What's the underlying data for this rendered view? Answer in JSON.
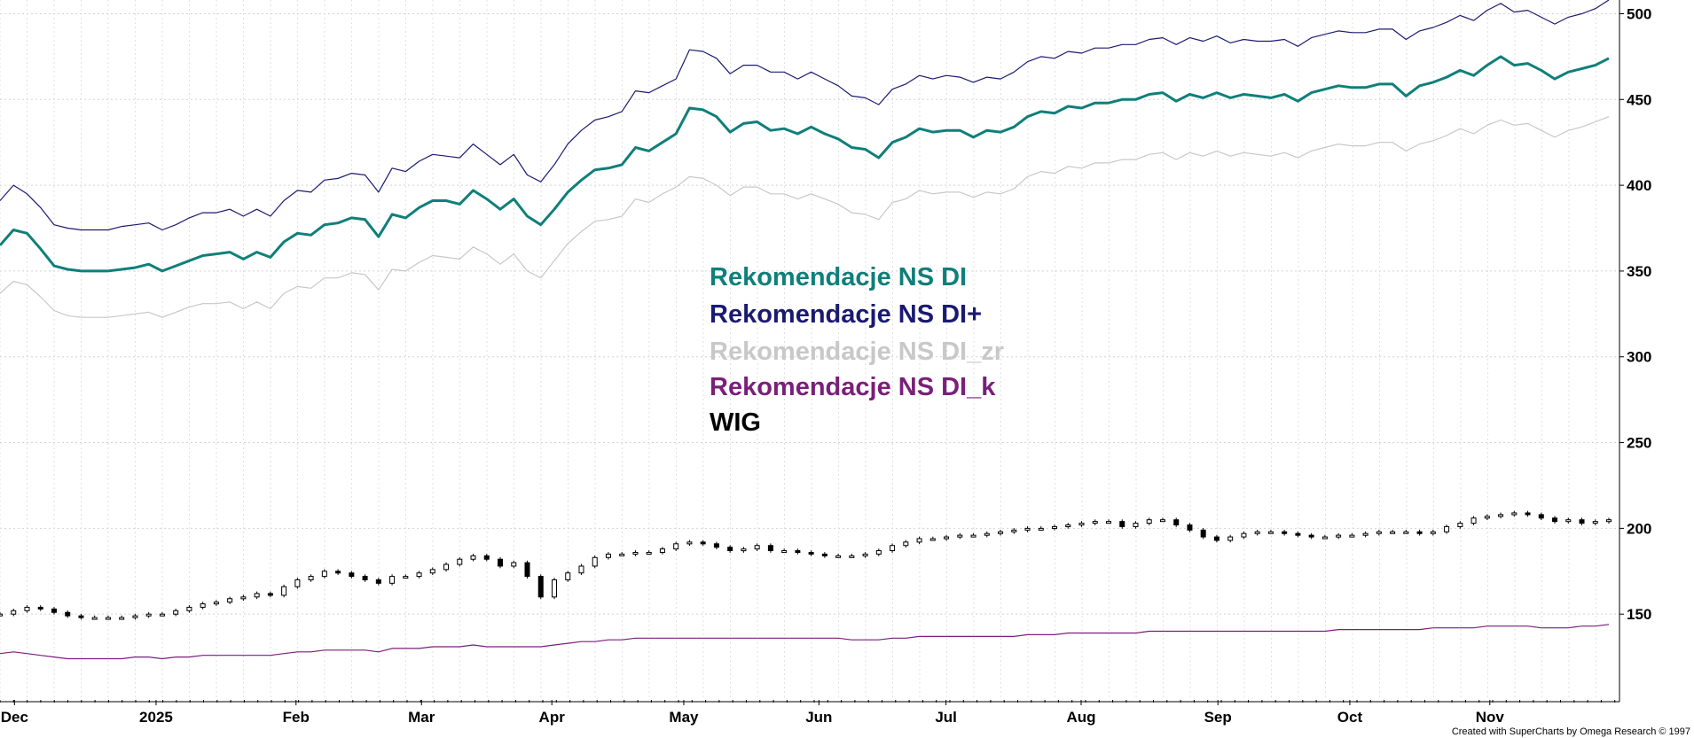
{
  "chart_data": {
    "type": "line",
    "y_axis": {
      "ticks": [
        150,
        200,
        250,
        300,
        350,
        400,
        450,
        500
      ],
      "range": [
        100,
        508
      ],
      "position": "right"
    },
    "x_axis": {
      "ticks": [
        "Dec",
        "2025",
        "Feb",
        "Mar",
        "Apr",
        "May",
        "Jun",
        "Jul",
        "Aug",
        "Sep",
        "Oct",
        "Nov"
      ]
    },
    "grid": true,
    "legend_placement": "center",
    "series": [
      {
        "name": "Rekomendacje NS DI",
        "color": "#0f7f7a",
        "style": "bold",
        "values": [
          365,
          374,
          372,
          363,
          353,
          351,
          350,
          350,
          350,
          351,
          352,
          354,
          350,
          353,
          356,
          359,
          360,
          361,
          357,
          361,
          358,
          367,
          372,
          371,
          377,
          378,
          381,
          380,
          370,
          383,
          381,
          387,
          391,
          391,
          389,
          397,
          392,
          386,
          392,
          382,
          377,
          386,
          396,
          403,
          409,
          410,
          412,
          422,
          420,
          425,
          430,
          445,
          444,
          440,
          431,
          436,
          437,
          432,
          433,
          430,
          434,
          430,
          427,
          422,
          421,
          416,
          425,
          428,
          433,
          431,
          432,
          432,
          428,
          432,
          431,
          434,
          440,
          443,
          442,
          446,
          445,
          448,
          448,
          450,
          450,
          453,
          454,
          449,
          453,
          451,
          454,
          451,
          453,
          452,
          451,
          453,
          449,
          454,
          456,
          458,
          457,
          457,
          459,
          459,
          452,
          458,
          460,
          463,
          467,
          464,
          470,
          475,
          470,
          471,
          467,
          462,
          466,
          468,
          470,
          474
        ]
      },
      {
        "name": "Rekomendacje NS DI+",
        "color": "#1a1a72",
        "style": "thin",
        "values": [
          391,
          400,
          395,
          387,
          377,
          375,
          374,
          374,
          374,
          376,
          377,
          378,
          374,
          377,
          381,
          384,
          384,
          386,
          382,
          386,
          382,
          391,
          397,
          396,
          403,
          404,
          407,
          406,
          396,
          410,
          408,
          414,
          418,
          417,
          416,
          424,
          418,
          412,
          418,
          406,
          402,
          412,
          424,
          432,
          438,
          440,
          443,
          455,
          454,
          458,
          462,
          479,
          478,
          474,
          465,
          470,
          470,
          466,
          466,
          462,
          466,
          462,
          458,
          452,
          451,
          447,
          456,
          459,
          464,
          462,
          464,
          463,
          460,
          463,
          462,
          466,
          472,
          475,
          474,
          478,
          477,
          480,
          480,
          482,
          482,
          485,
          486,
          482,
          486,
          484,
          487,
          483,
          485,
          484,
          484,
          485,
          481,
          486,
          488,
          490,
          489,
          489,
          491,
          491,
          485,
          490,
          492,
          495,
          499,
          496,
          502,
          506,
          501,
          502,
          498,
          494,
          498,
          500,
          503,
          508
        ]
      },
      {
        "name": "Rekomendacje NS DI_zr",
        "color": "#c8c8c8",
        "style": "thin",
        "values": [
          337,
          344,
          342,
          335,
          327,
          324,
          323,
          323,
          323,
          324,
          325,
          326,
          323,
          326,
          329,
          331,
          331,
          332,
          328,
          332,
          328,
          337,
          341,
          340,
          346,
          346,
          349,
          348,
          339,
          351,
          350,
          355,
          359,
          358,
          357,
          364,
          360,
          354,
          360,
          350,
          346,
          356,
          366,
          373,
          379,
          380,
          382,
          392,
          390,
          395,
          399,
          405,
          404,
          400,
          394,
          399,
          399,
          395,
          395,
          392,
          395,
          392,
          389,
          384,
          383,
          380,
          390,
          392,
          397,
          395,
          396,
          396,
          393,
          396,
          395,
          398,
          405,
          408,
          407,
          411,
          410,
          413,
          413,
          415,
          415,
          418,
          419,
          415,
          419,
          417,
          420,
          417,
          419,
          418,
          417,
          419,
          416,
          420,
          422,
          424,
          423,
          423,
          425,
          425,
          420,
          424,
          426,
          429,
          433,
          430,
          435,
          438,
          435,
          436,
          432,
          428,
          432,
          434,
          437,
          440
        ]
      },
      {
        "name": "Rekomendacje NS DI_k",
        "color": "#7a1f7a",
        "style": "thin",
        "values": [
          127,
          128,
          127,
          126,
          125,
          124,
          124,
          124,
          124,
          124,
          125,
          125,
          124,
          125,
          125,
          126,
          126,
          126,
          126,
          126,
          126,
          127,
          128,
          128,
          129,
          129,
          129,
          129,
          128,
          130,
          130,
          130,
          131,
          131,
          131,
          132,
          131,
          131,
          131,
          131,
          131,
          132,
          133,
          134,
          134,
          135,
          135,
          136,
          136,
          136,
          136,
          136,
          136,
          136,
          136,
          136,
          136,
          136,
          136,
          136,
          136,
          136,
          136,
          135,
          135,
          135,
          136,
          136,
          137,
          137,
          137,
          137,
          137,
          137,
          137,
          137,
          138,
          138,
          138,
          139,
          139,
          139,
          139,
          139,
          139,
          140,
          140,
          140,
          140,
          140,
          140,
          140,
          140,
          140,
          140,
          140,
          140,
          140,
          140,
          141,
          141,
          141,
          141,
          141,
          141,
          141,
          142,
          142,
          142,
          142,
          143,
          143,
          143,
          143,
          142,
          142,
          142,
          143,
          143,
          144
        ]
      },
      {
        "name": "WIG",
        "color": "#000000",
        "style": "candles",
        "values": [
          150,
          152,
          154,
          153,
          151,
          149,
          148,
          148,
          148,
          148,
          149,
          150,
          150,
          152,
          154,
          156,
          157,
          159,
          160,
          162,
          161,
          166,
          170,
          172,
          175,
          174,
          172,
          170,
          168,
          172,
          172,
          174,
          176,
          179,
          182,
          184,
          182,
          178,
          180,
          172,
          160,
          170,
          174,
          178,
          183,
          185,
          185,
          186,
          186,
          188,
          191,
          192,
          191,
          189,
          187,
          188,
          190,
          187,
          187,
          186,
          185,
          184,
          184,
          184,
          185,
          187,
          190,
          192,
          194,
          194,
          195,
          196,
          196,
          197,
          198,
          199,
          200,
          200,
          201,
          202,
          203,
          204,
          204,
          201,
          203,
          205,
          205,
          202,
          199,
          195,
          193,
          195,
          197,
          198,
          198,
          197,
          196,
          195,
          195,
          196,
          196,
          197,
          198,
          198,
          198,
          197,
          198,
          201,
          203,
          206,
          207,
          208,
          209,
          208,
          206,
          204,
          205,
          203,
          204,
          205
        ]
      }
    ]
  },
  "legend": [
    {
      "label": "Rekomendacje NS DI",
      "color": "#0f7f7a"
    },
    {
      "label": "Rekomendacje NS DI+",
      "color": "#1a1a72"
    },
    {
      "label": "Rekomendacje NS DI_zr",
      "color": "#c8c8c8"
    },
    {
      "label": "Rekomendacje NS DI_k",
      "color": "#7a1f7a"
    },
    {
      "label": "WIG",
      "color": "#000000"
    }
  ],
  "footer": {
    "credit": "Created with SuperCharts by Omega Research © 1997"
  }
}
